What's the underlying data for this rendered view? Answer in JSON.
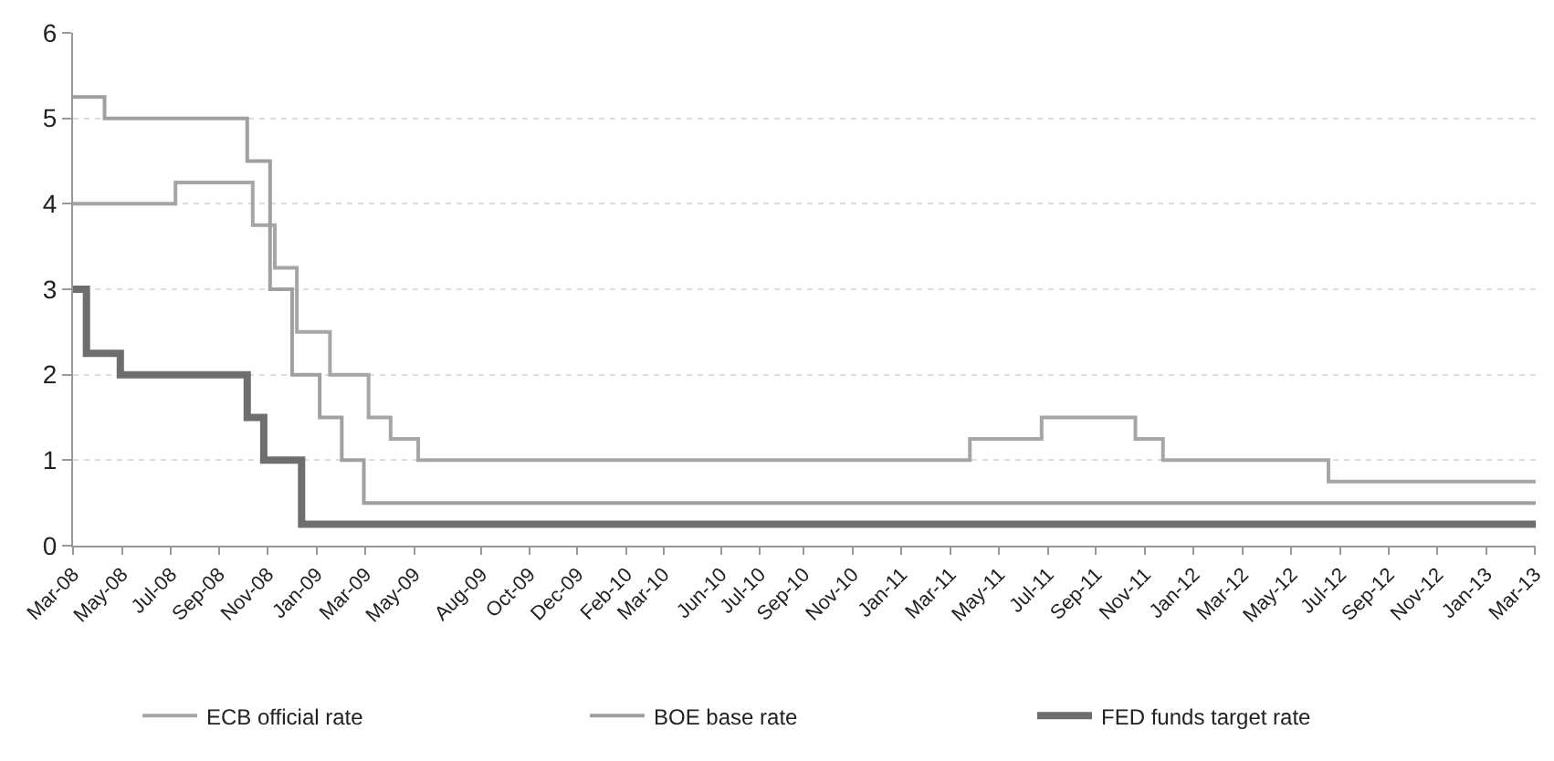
{
  "chart_data": {
    "type": "step",
    "xlim": [
      "2008-03-01",
      "2013-03-31"
    ],
    "xticks": [
      {
        "value": "2008-03-01",
        "label": "Mar-08"
      },
      {
        "value": "2008-05-02",
        "label": "May-08"
      },
      {
        "value": "2008-07-03",
        "label": "Jul-08"
      },
      {
        "value": "2008-09-02",
        "label": "Sep-08"
      },
      {
        "value": "2008-11-03",
        "label": "Nov-08"
      },
      {
        "value": "2009-01-04",
        "label": "Jan-09"
      },
      {
        "value": "2009-03-07",
        "label": "Mar-09"
      },
      {
        "value": "2009-05-08",
        "label": "May-09"
      },
      {
        "value": "2009-08-01",
        "label": "Aug-09"
      },
      {
        "value": "2009-10-01",
        "label": "Oct-09"
      },
      {
        "value": "2009-12-01",
        "label": "Dec-09"
      },
      {
        "value": "2010-02-01",
        "label": "Feb-10"
      },
      {
        "value": "2010-03-20",
        "label": "Mar-10"
      },
      {
        "value": "2010-06-01",
        "label": "Jun-10"
      },
      {
        "value": "2010-07-20",
        "label": "Jul-10"
      },
      {
        "value": "2010-09-14",
        "label": "Sep-10"
      },
      {
        "value": "2010-11-15",
        "label": "Nov-10"
      },
      {
        "value": "2011-01-16",
        "label": "Jan-11"
      },
      {
        "value": "2011-03-19",
        "label": "Mar-11"
      },
      {
        "value": "2011-05-20",
        "label": "May-11"
      },
      {
        "value": "2011-07-21",
        "label": "Jul-11"
      },
      {
        "value": "2011-09-20",
        "label": "Sep-11"
      },
      {
        "value": "2011-11-21",
        "label": "Nov-11"
      },
      {
        "value": "2012-01-22",
        "label": "Jan-12"
      },
      {
        "value": "2012-03-24",
        "label": "Mar-12"
      },
      {
        "value": "2012-05-25",
        "label": "May-12"
      },
      {
        "value": "2012-07-26",
        "label": "Jul-12"
      },
      {
        "value": "2012-09-25",
        "label": "Sep-12"
      },
      {
        "value": "2012-11-26",
        "label": "Nov-12"
      },
      {
        "value": "2013-01-27",
        "label": "Jan-13"
      },
      {
        "value": "2013-03-30",
        "label": "Mar-13"
      }
    ],
    "ylim": [
      0,
      6
    ],
    "yticks": [
      0,
      1,
      2,
      3,
      4,
      5,
      6
    ],
    "grid": "y",
    "legend": "bottom",
    "series": [
      {
        "name": "ECB official rate",
        "color": "#a6a6a6",
        "x": [
          "2008-03-01",
          "2008-07-09",
          "2008-10-15",
          "2008-11-12",
          "2008-12-10",
          "2009-01-21",
          "2009-03-11",
          "2009-04-08",
          "2009-05-13",
          "2011-04-13",
          "2011-07-13",
          "2011-11-09",
          "2011-12-14",
          "2012-07-11",
          "2013-03-31"
        ],
        "values": [
          4.0,
          4.25,
          3.75,
          3.25,
          2.5,
          2.0,
          1.5,
          1.25,
          1.0,
          1.25,
          1.5,
          1.25,
          1.0,
          0.75,
          0.75
        ]
      },
      {
        "name": "BOE base rate",
        "color": "#a0a0a0",
        "x": [
          "2008-03-01",
          "2008-04-10",
          "2008-10-08",
          "2008-11-06",
          "2008-12-04",
          "2009-01-08",
          "2009-02-05",
          "2009-03-05",
          "2013-03-31"
        ],
        "values": [
          5.25,
          5.0,
          4.5,
          3.0,
          2.0,
          1.5,
          1.0,
          0.5,
          0.5
        ]
      },
      {
        "name": "FED funds target rate",
        "color": "#6e6e6e",
        "x": [
          "2008-03-01",
          "2008-03-18",
          "2008-04-30",
          "2008-10-08",
          "2008-10-29",
          "2008-12-16",
          "2013-03-31"
        ],
        "values": [
          3.0,
          2.25,
          2.0,
          1.5,
          1.0,
          0.25,
          0.25
        ]
      }
    ]
  }
}
